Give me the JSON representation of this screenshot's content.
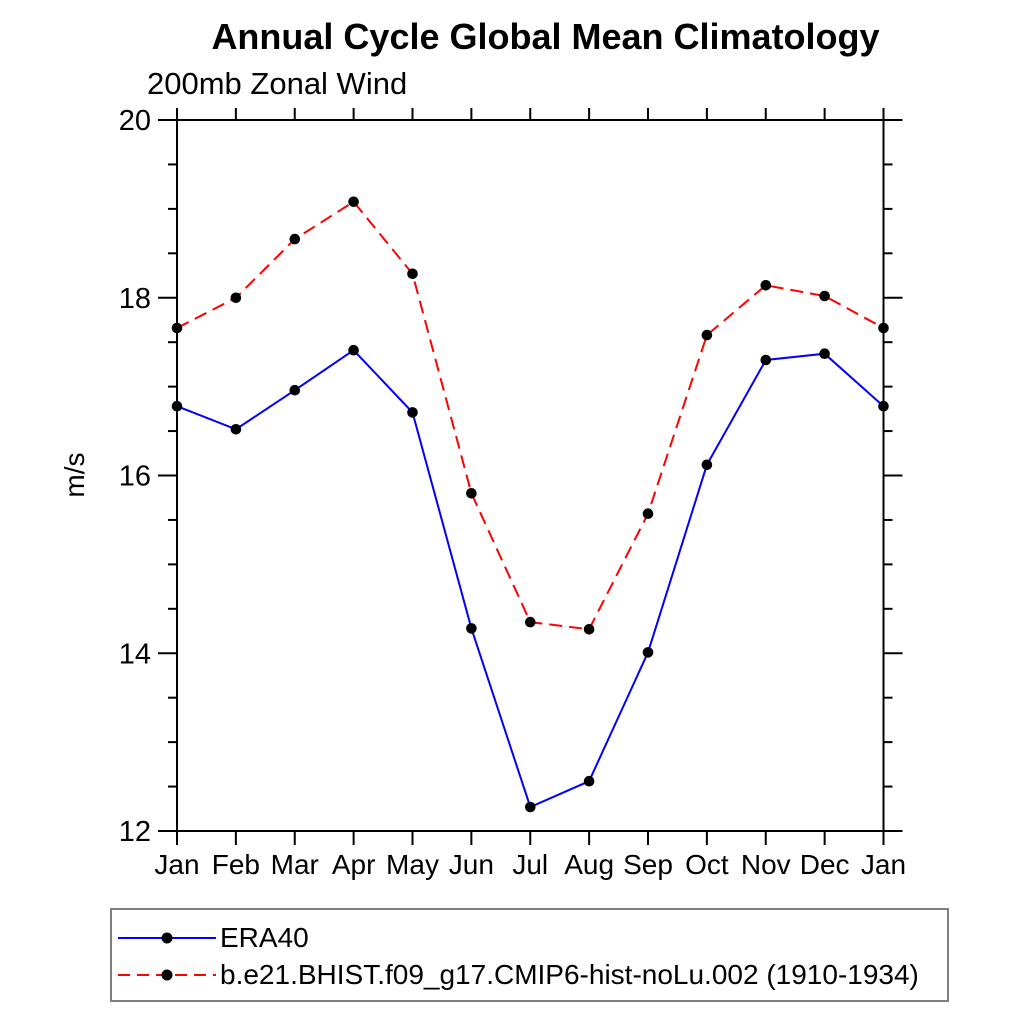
{
  "page": {
    "title": "Annual Cycle Global Mean Climatology",
    "subtitle": "200mb Zonal Wind"
  },
  "chart_data": {
    "type": "line",
    "title": "Annual Cycle Global Mean Climatology",
    "subtitle": "200mb Zonal Wind",
    "xlabel": "",
    "ylabel": "m/s",
    "ylim": [
      12,
      20
    ],
    "yticks_major": [
      12,
      14,
      16,
      18,
      20
    ],
    "ytick_labels": [
      "12",
      "14",
      "16",
      "18",
      "20"
    ],
    "ytick_minor_step": 0.5,
    "grid": false,
    "legend_position": "bottom-left-box",
    "categories": [
      "Jan",
      "Feb",
      "Mar",
      "Apr",
      "May",
      "Jun",
      "Jul",
      "Aug",
      "Sep",
      "Oct",
      "Nov",
      "Dec",
      "Jan"
    ],
    "series": [
      {
        "name": "ERA40",
        "color": "#0000ff",
        "line_style": "solid",
        "marker": "filled-circle",
        "marker_color": "#000000",
        "values": [
          16.78,
          16.52,
          16.96,
          17.41,
          16.71,
          14.28,
          12.27,
          12.56,
          14.01,
          16.12,
          17.3,
          17.37,
          16.78
        ]
      },
      {
        "name": "b.e21.BHIST.f09_g17.CMIP6-hist-noLu.002 (1910-1934)",
        "color": "#ff0000",
        "line_style": "dashed",
        "marker": "filled-circle",
        "marker_color": "#000000",
        "values": [
          17.66,
          18.0,
          18.66,
          19.08,
          18.27,
          15.8,
          14.35,
          14.27,
          15.57,
          17.58,
          18.14,
          18.02,
          17.66
        ]
      }
    ],
    "axis_color": "#000000"
  }
}
